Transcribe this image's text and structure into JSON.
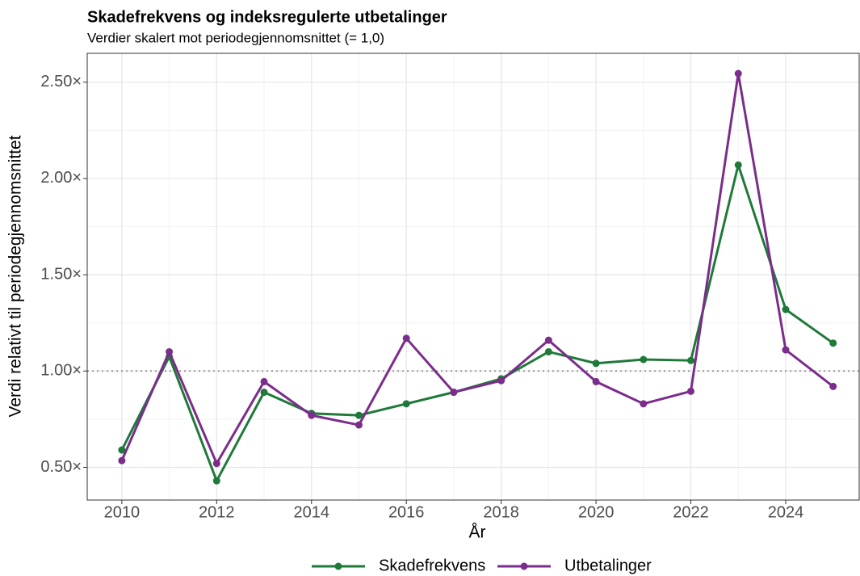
{
  "chart_data": {
    "type": "line",
    "title": "Skadefrekvens og indeksregulerte utbetalinger",
    "subtitle": "Verdier skalert mot periodegjennomsnittet (= 1,0)",
    "x_label": "År",
    "y_label": "Verdi relativt til periodegjennomsnittet",
    "x": [
      2010,
      2011,
      2012,
      2013,
      2014,
      2015,
      2016,
      2017,
      2018,
      2019,
      2020,
      2021,
      2022,
      2023,
      2024,
      2025
    ],
    "series": [
      {
        "name": "Skadefrekvens",
        "color": "#1f7a3a",
        "values": [
          0.59,
          1.075,
          0.43,
          0.89,
          0.78,
          0.77,
          0.83,
          0.89,
          0.96,
          1.1,
          1.04,
          1.06,
          1.055,
          2.07,
          1.32,
          1.145
        ]
      },
      {
        "name": "Utbetalinger",
        "color": "#7b2d8b",
        "values": [
          0.535,
          1.1,
          0.52,
          0.945,
          0.77,
          0.72,
          1.17,
          0.89,
          0.95,
          1.16,
          0.945,
          0.83,
          0.895,
          2.545,
          1.11,
          0.92
        ]
      }
    ],
    "xlim": [
      2009.27,
      2025.55
    ],
    "xticks": [
      2010,
      2012,
      2014,
      2016,
      2018,
      2020,
      2022,
      2024
    ],
    "ylim": [
      0.33,
      2.65
    ],
    "yticks": [
      {
        "value": 0.5,
        "label": "0.50×"
      },
      {
        "value": 1.0,
        "label": "1.00×"
      },
      {
        "value": 1.5,
        "label": "1.50×"
      },
      {
        "value": 2.0,
        "label": "2.00×"
      },
      {
        "value": 2.5,
        "label": "2.50×"
      }
    ],
    "reference_line": 1.0,
    "grid": true,
    "legend_position": "bottom"
  }
}
